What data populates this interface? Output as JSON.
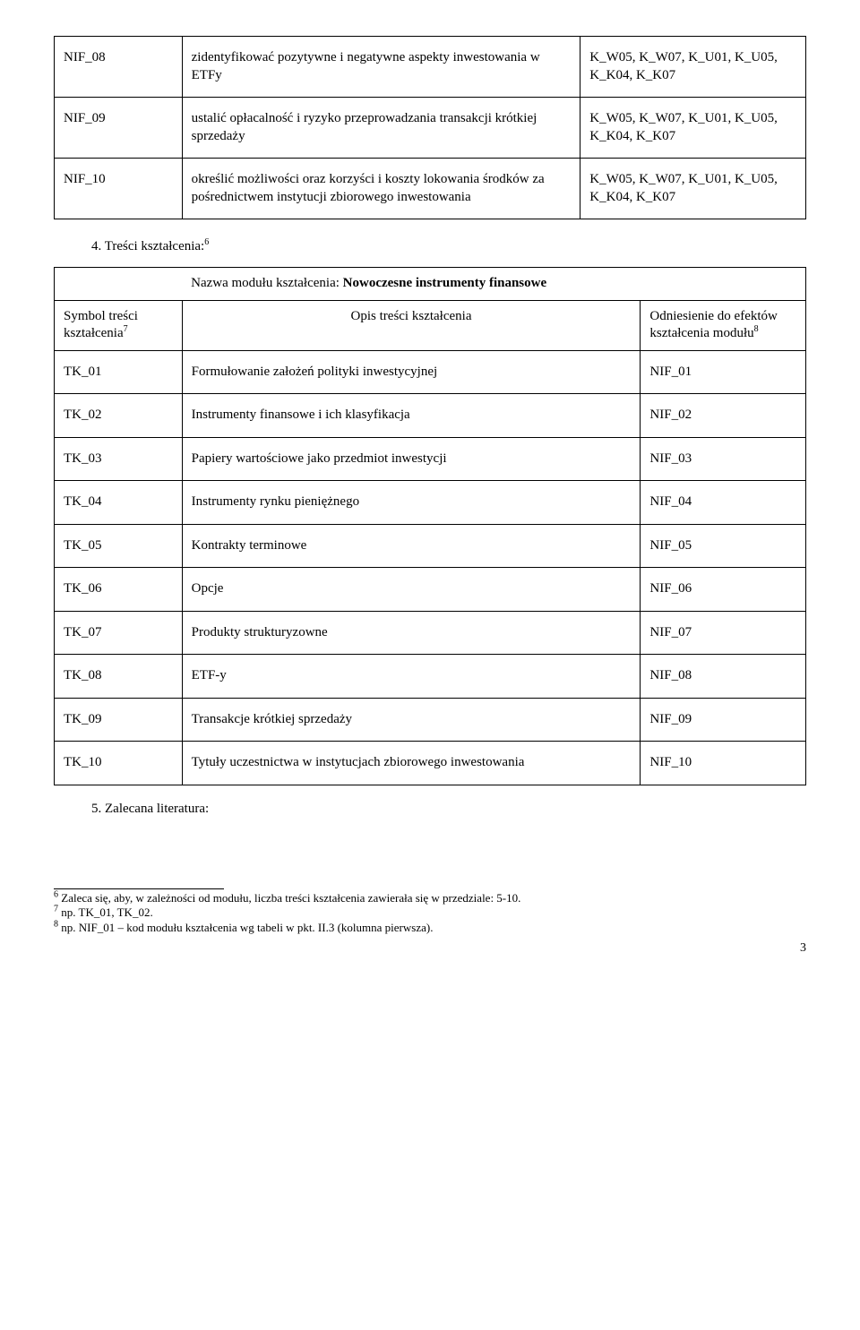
{
  "tableA": {
    "rows": [
      {
        "c1": "NIF_08",
        "c2": "zidentyfikować pozytywne i negatywne aspekty inwestowania w ETFy",
        "c3": "K_W05, K_W07, K_U01, K_U05, K_K04, K_K07"
      },
      {
        "c1": "NIF_09",
        "c2": "ustalić opłacalność i ryzyko przeprowadzania transakcji krótkiej sprzedaży",
        "c3": "K_W05, K_W07, K_U01, K_U05, K_K04, K_K07"
      },
      {
        "c1": "NIF_10",
        "c2": "określić możliwości oraz korzyści i koszty lokowania środków za pośrednictwem instytucji zbiorowego inwestowania",
        "c3": "K_W05, K_W07, K_U01, K_U05, K_K04, K_K07"
      }
    ]
  },
  "section4": "4. Treści kształcenia:",
  "section4_sup": "6",
  "tableB": {
    "header_full": "Nazwa modułu kształcenia: Nowoczesne instrumenty finansowe",
    "header_title_prefix": "Nazwa modułu kształcenia: ",
    "header_title_bold": "Nowoczesne instrumenty finansowe",
    "sub_c1_a": "Symbol treści",
    "sub_c1_b": "kształcenia",
    "sub_c1_sup": "7",
    "sub_c2": "Opis treści kształcenia",
    "sub_c3_a": "Odniesienie do efektów",
    "sub_c3_b": "kształcenia modułu",
    "sub_c3_sup": "8",
    "rows": [
      {
        "c1": "TK_01",
        "c2": "Formułowanie założeń polityki inwestycyjnej",
        "c3": "NIF_01"
      },
      {
        "c1": "TK_02",
        "c2": "Instrumenty finansowe i ich klasyfikacja",
        "c3": "NIF_02"
      },
      {
        "c1": "TK_03",
        "c2": "Papiery wartościowe jako przedmiot inwestycji",
        "c3": "NIF_03"
      },
      {
        "c1": "TK_04",
        "c2": "Instrumenty rynku pieniężnego",
        "c3": "NIF_04"
      },
      {
        "c1": "TK_05",
        "c2": "Kontrakty terminowe",
        "c3": "NIF_05"
      },
      {
        "c1": "TK_06",
        "c2": "Opcje",
        "c3": "NIF_06"
      },
      {
        "c1": "TK_07",
        "c2": "Produkty strukturyzowne",
        "c3": "NIF_07"
      },
      {
        "c1": "TK_08",
        "c2": "ETF-y",
        "c3": "NIF_08"
      },
      {
        "c1": "TK_09",
        "c2": "Transakcje krótkiej sprzedaży",
        "c3": "NIF_09"
      },
      {
        "c1": "TK_10",
        "c2": "Tytuły uczestnictwa w instytucjach zbiorowego inwestowania",
        "c3": "NIF_10"
      }
    ]
  },
  "section5": "5. Zalecana literatura:",
  "footnotes": {
    "f6_num": "6",
    "f6": " Zaleca się, aby, w zależności od modułu, liczba treści kształcenia zawierała się w przedziale: 5-10.",
    "f7_num": "7",
    "f7": " np. TK_01, TK_02.",
    "f8_num": "8",
    "f8": " np. NIF_01 – kod modułu kształcenia wg tabeli w pkt. II.3 (kolumna pierwsza)."
  },
  "page_number": "3"
}
